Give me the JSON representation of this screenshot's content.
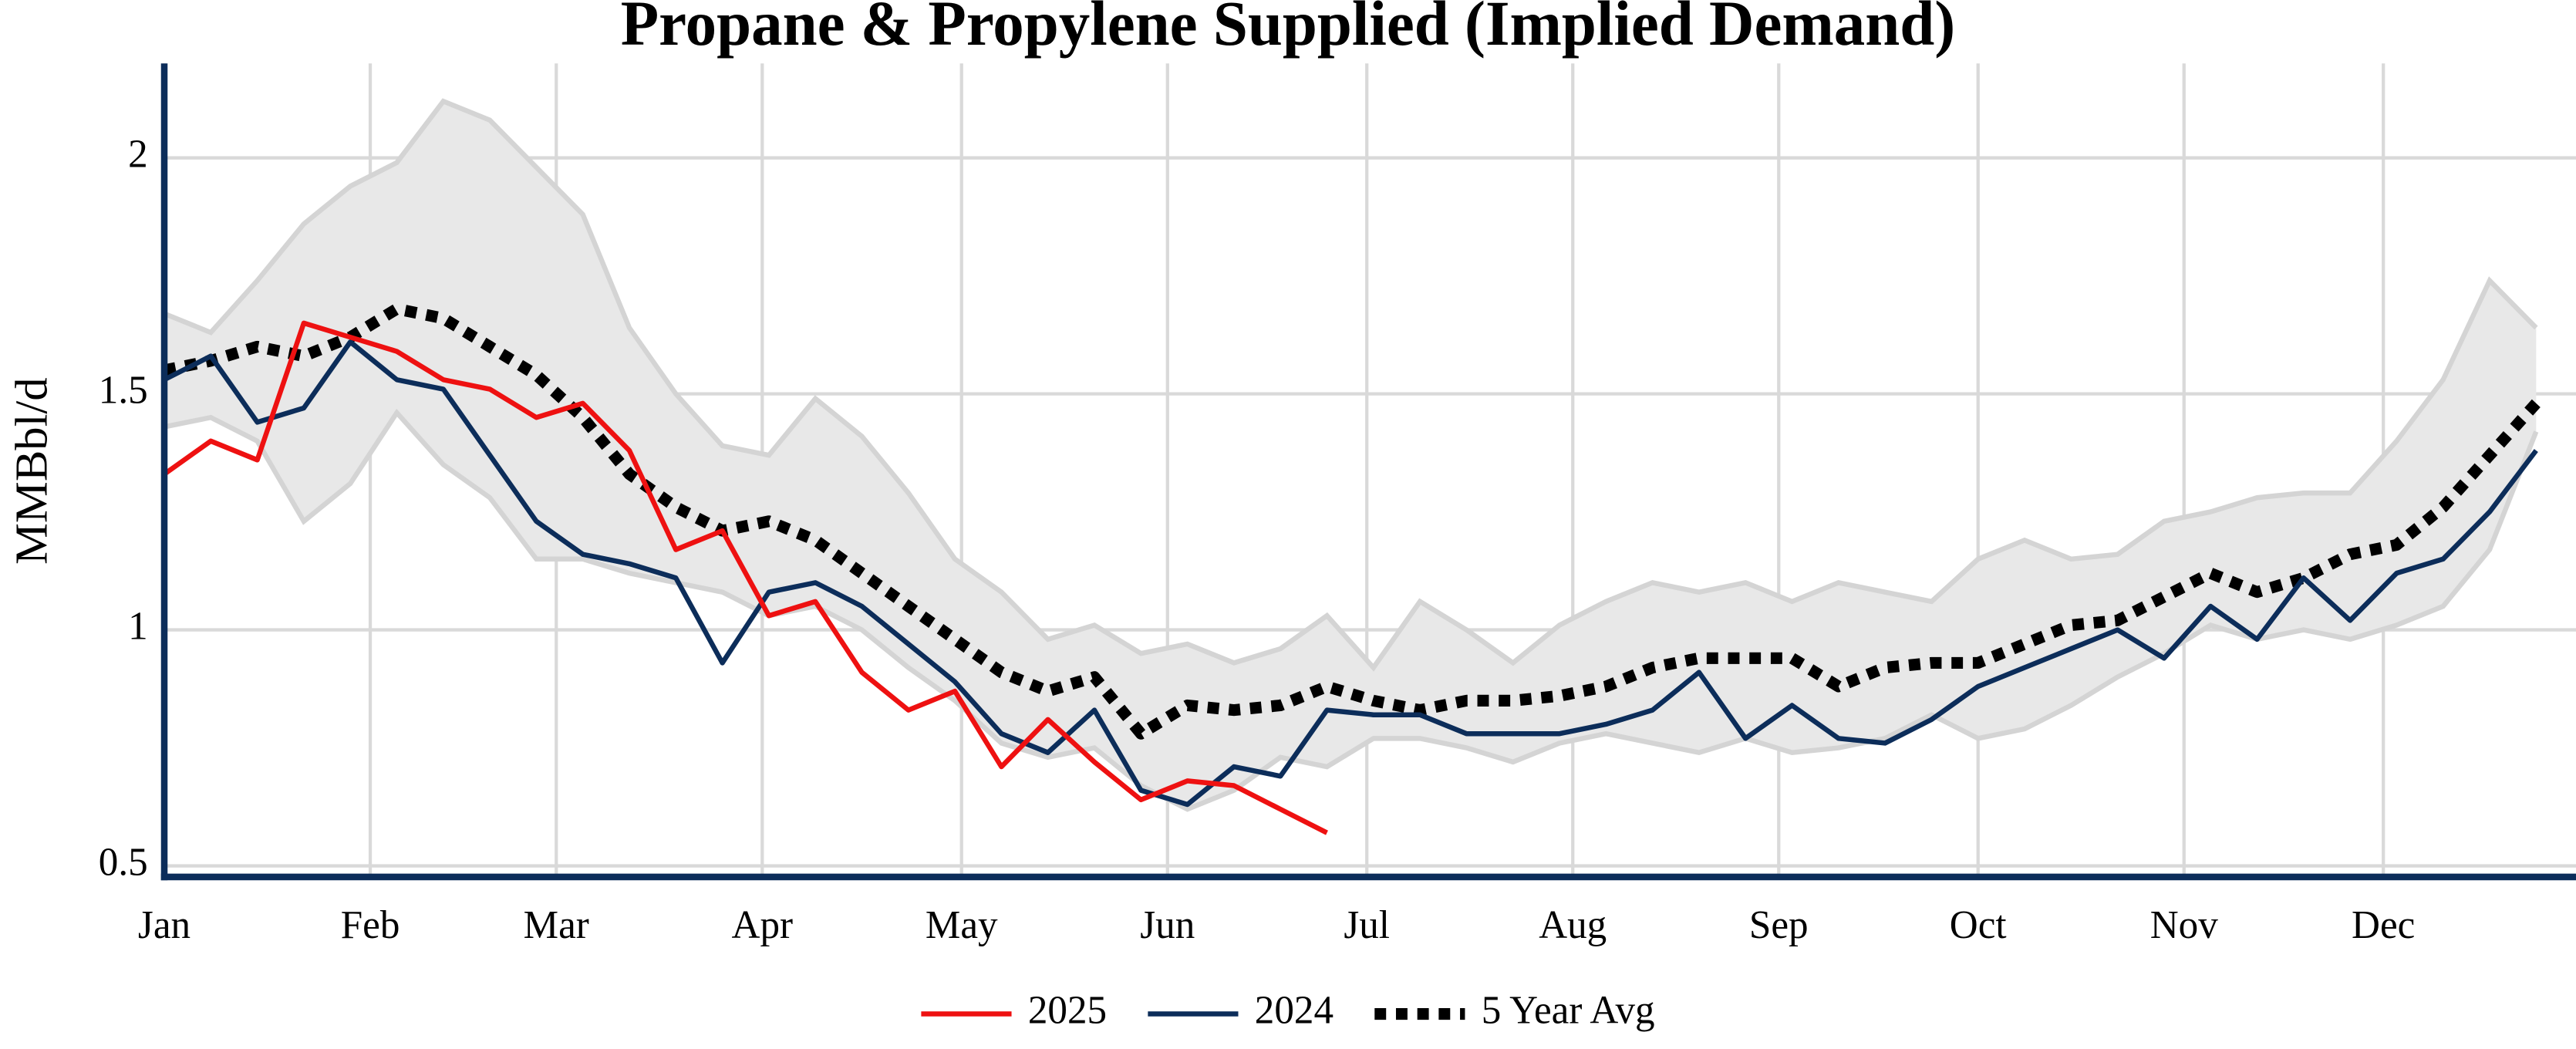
{
  "chart_data": {
    "type": "line",
    "title": "Propane & Propylene Supplied (Implied Demand)",
    "y_label": "MMBbl/d",
    "x": [
      0,
      7,
      14,
      21,
      28,
      35,
      42,
      49,
      56,
      63,
      70,
      77,
      84,
      91,
      98,
      105,
      112,
      119,
      126,
      133,
      140,
      147,
      154,
      161,
      168,
      175,
      182,
      189,
      196,
      203,
      210,
      217,
      224,
      231,
      238,
      245,
      252,
      259,
      266,
      273,
      280,
      287,
      294,
      301,
      308,
      315,
      322,
      329,
      336,
      343,
      350,
      357
    ],
    "xlim": [
      0,
      363
    ],
    "xticks": [
      {
        "value": 0,
        "label": "Jan"
      },
      {
        "value": 31,
        "label": "Feb"
      },
      {
        "value": 59,
        "label": "Mar"
      },
      {
        "value": 90,
        "label": "Apr"
      },
      {
        "value": 120,
        "label": "May"
      },
      {
        "value": 151,
        "label": "Jun"
      },
      {
        "value": 181,
        "label": "Jul"
      },
      {
        "value": 212,
        "label": "Aug"
      },
      {
        "value": 243,
        "label": "Sep"
      },
      {
        "value": 273,
        "label": "Oct"
      },
      {
        "value": 304,
        "label": "Nov"
      },
      {
        "value": 334,
        "label": "Dec"
      }
    ],
    "ylim": [
      0.48,
      2.2
    ],
    "yticks": [
      0.5,
      1,
      1.5,
      2
    ],
    "grid": true,
    "legend": "bottom",
    "range": {
      "color": "#e8e8e8",
      "edge_color": "#d4d4d4",
      "upper": [
        1.67,
        1.63,
        1.74,
        1.86,
        1.94,
        1.99,
        2.12,
        2.08,
        1.98,
        1.88,
        1.64,
        1.5,
        1.39,
        1.37,
        1.49,
        1.41,
        1.29,
        1.15,
        1.08,
        0.98,
        1.01,
        0.95,
        0.97,
        0.93,
        0.96,
        1.03,
        0.92,
        1.06,
        1.0,
        0.93,
        1.01,
        1.06,
        1.1,
        1.08,
        1.1,
        1.06,
        1.1,
        1.08,
        1.06,
        1.15,
        1.19,
        1.15,
        1.16,
        1.23,
        1.25,
        1.28,
        1.29,
        1.29,
        1.4,
        1.53,
        1.74,
        1.64
      ],
      "lower": [
        1.43,
        1.45,
        1.4,
        1.23,
        1.31,
        1.46,
        1.35,
        1.28,
        1.15,
        1.15,
        1.12,
        1.1,
        1.08,
        1.03,
        1.05,
        1.0,
        0.92,
        0.85,
        0.76,
        0.73,
        0.75,
        0.67,
        0.62,
        0.66,
        0.73,
        0.71,
        0.77,
        0.77,
        0.75,
        0.72,
        0.76,
        0.78,
        0.76,
        0.74,
        0.77,
        0.74,
        0.75,
        0.77,
        0.82,
        0.77,
        0.79,
        0.84,
        0.9,
        0.95,
        1.01,
        0.98,
        1.0,
        0.98,
        1.01,
        1.05,
        1.17,
        1.42
      ]
    },
    "series": [
      {
        "name": "2025",
        "color": "#ee1111",
        "style": "solid",
        "values": [
          1.33,
          1.4,
          1.36,
          1.65,
          1.62,
          1.59,
          1.53,
          1.51,
          1.45,
          1.48,
          1.38,
          1.17,
          1.21,
          1.03,
          1.06,
          0.91,
          0.83,
          0.87,
          0.71,
          0.81,
          0.72,
          0.64,
          0.68,
          0.67,
          0.62,
          0.57,
          null,
          null,
          null,
          null,
          null,
          null,
          null,
          null,
          null,
          null,
          null,
          null,
          null,
          null,
          null,
          null,
          null,
          null,
          null,
          null,
          null,
          null,
          null,
          null,
          null,
          null
        ]
      },
      {
        "name": "2024",
        "color": "#0c2d5a",
        "style": "solid",
        "values": [
          1.53,
          1.58,
          1.44,
          1.47,
          1.61,
          1.53,
          1.51,
          1.37,
          1.23,
          1.16,
          1.14,
          1.11,
          0.93,
          1.08,
          1.1,
          1.05,
          0.97,
          0.89,
          0.78,
          0.74,
          0.83,
          0.66,
          0.63,
          0.71,
          0.69,
          0.83,
          0.82,
          0.82,
          0.78,
          0.78,
          0.78,
          0.8,
          0.83,
          0.91,
          0.77,
          0.84,
          0.77,
          0.76,
          0.81,
          0.88,
          0.92,
          0.96,
          1.0,
          0.94,
          1.05,
          0.98,
          1.11,
          1.02,
          1.12,
          1.15,
          1.25,
          1.38
        ]
      },
      {
        "name": "5 Year Avg",
        "color": "#000000",
        "style": "dotted",
        "values": [
          1.55,
          1.57,
          1.6,
          1.58,
          1.62,
          1.68,
          1.66,
          1.6,
          1.54,
          1.45,
          1.33,
          1.26,
          1.21,
          1.23,
          1.19,
          1.12,
          1.05,
          0.98,
          0.91,
          0.87,
          0.9,
          0.78,
          0.84,
          0.83,
          0.84,
          0.88,
          0.85,
          0.83,
          0.85,
          0.85,
          0.86,
          0.88,
          0.92,
          0.94,
          0.94,
          0.94,
          0.88,
          0.92,
          0.93,
          0.93,
          0.97,
          1.01,
          1.02,
          1.07,
          1.12,
          1.08,
          1.11,
          1.16,
          1.18,
          1.26,
          1.37,
          1.48
        ]
      }
    ]
  }
}
